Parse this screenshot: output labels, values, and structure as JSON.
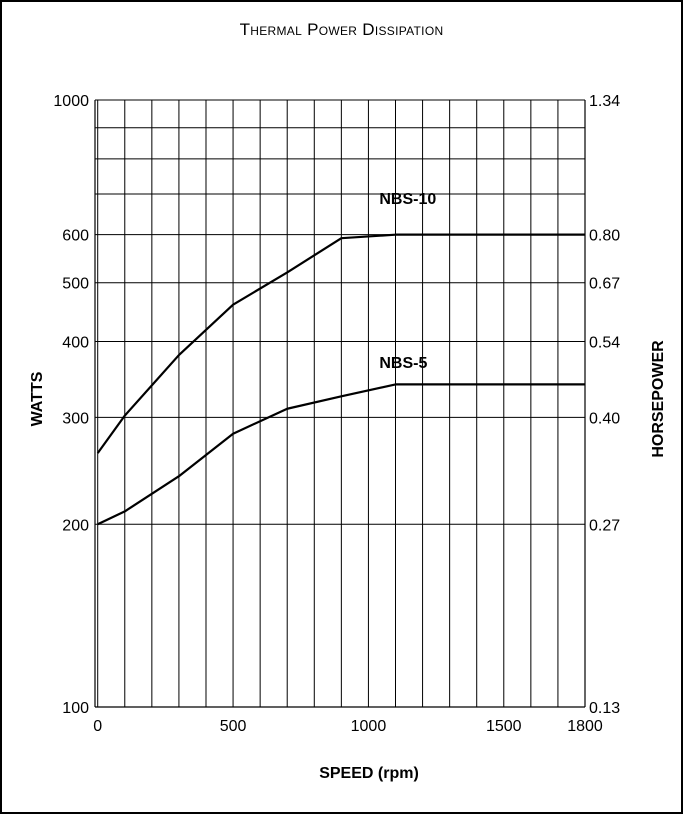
{
  "chart_data": {
    "type": "line",
    "title": "Thermal Power Dissipation",
    "xlabel": "SPEED (rpm)",
    "ylabel": "WATTS",
    "y2label": "HORSEPOWER",
    "xlim": [
      -10,
      1800
    ],
    "ylim": [
      100,
      1000
    ],
    "yscale": "log",
    "grid": true,
    "x_ticks": [
      0,
      500,
      1000,
      1500,
      1800
    ],
    "y_ticks": [
      100,
      200,
      300,
      400,
      500,
      600,
      1000
    ],
    "y2_ticks": [
      {
        "watts": 1000,
        "label": "1.34"
      },
      {
        "watts": 600,
        "label": "0.80"
      },
      {
        "watts": 500,
        "label": "0.67"
      },
      {
        "watts": 400,
        "label": "0.54"
      },
      {
        "watts": 300,
        "label": "0.40"
      },
      {
        "watts": 200,
        "label": "0.27"
      },
      {
        "watts": 100,
        "label": "0.13"
      }
    ],
    "series": [
      {
        "name": "NBS-10",
        "x": [
          0,
          100,
          300,
          500,
          700,
          900,
          1100,
          1800
        ],
        "y": [
          262,
          302,
          380,
          460,
          520,
          592,
          600,
          600
        ]
      },
      {
        "name": "NBS-5",
        "x": [
          0,
          100,
          300,
          500,
          700,
          900,
          1100,
          1800
        ],
        "y": [
          200,
          210,
          240,
          282,
          310,
          325,
          340,
          340
        ]
      }
    ]
  }
}
